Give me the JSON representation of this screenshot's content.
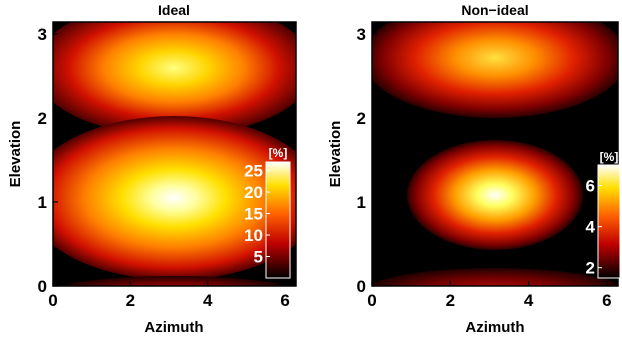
{
  "chart_data": [
    {
      "type": "heatmap",
      "title": "Ideal",
      "xlabel": "Azimuth",
      "ylabel": "Elevation",
      "xlim": [
        0,
        6.283
      ],
      "ylim": [
        0,
        3.1416
      ],
      "xticks": [
        0,
        2,
        4,
        6
      ],
      "yticks": [
        0,
        1,
        2,
        3
      ],
      "colorbar": {
        "label": "[%]",
        "ticks": [
          5,
          10,
          15,
          20,
          25
        ],
        "range": [
          0,
          27
        ]
      },
      "peaks": [
        {
          "azimuth": 3.14,
          "elevation": 2.6,
          "value": 19
        },
        {
          "azimuth": 3.14,
          "elevation": 1.05,
          "value": 26
        },
        {
          "azimuth": 3.14,
          "elevation": 0.05,
          "value": 6
        }
      ]
    },
    {
      "type": "heatmap",
      "title": "Non−ideal",
      "xlabel": "Azimuth",
      "ylabel": "Elevation",
      "xlim": [
        0,
        6.283
      ],
      "ylim": [
        0,
        3.1416
      ],
      "xticks": [
        0,
        2,
        4,
        6
      ],
      "yticks": [
        0,
        1,
        2,
        3
      ],
      "colorbar": {
        "label": "[%]",
        "ticks": [
          2,
          4,
          6
        ],
        "range": [
          1.5,
          7
        ]
      },
      "peaks": [
        {
          "azimuth": 3.14,
          "elevation": 2.65,
          "value": 5.8
        },
        {
          "azimuth": 3.14,
          "elevation": 1.1,
          "value": 6.8
        },
        {
          "azimuth": 3.14,
          "elevation": 0.05,
          "value": 3.5
        }
      ]
    }
  ]
}
